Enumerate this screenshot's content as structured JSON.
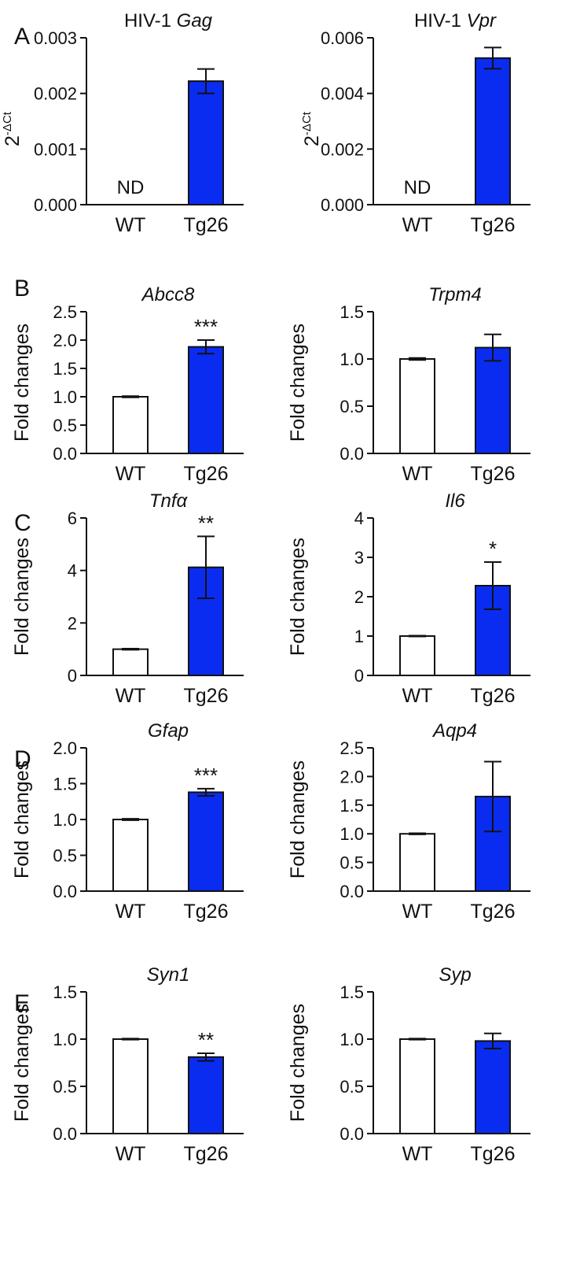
{
  "colors": {
    "wt_fill": "#ffffff",
    "tg_fill": "#0a2cf0",
    "stroke": "#111111"
  },
  "chart_data": [
    {
      "type": "bar",
      "panel": "A",
      "title_prefix": "HIV-1 ",
      "title": "Gag",
      "title_italic": true,
      "ylabel": "2-ΔCt",
      "ylabel_base": "2",
      "ylabel_sup": "-ΔCt",
      "ylim": [
        0,
        0.003
      ],
      "yticks": [
        "0.000",
        "0.001",
        "0.002",
        "0.003"
      ],
      "ytick_values": [
        0,
        0.001,
        0.002,
        0.003
      ],
      "categories": [
        "WT",
        "Tg26"
      ],
      "values": [
        0,
        0.00222
      ],
      "errors": [
        0,
        0.00022
      ],
      "annotations": [
        "ND",
        ""
      ]
    },
    {
      "type": "bar",
      "panel": "",
      "title_prefix": "HIV-1 ",
      "title": "Vpr",
      "title_italic": true,
      "ylabel": "2-ΔCt",
      "ylabel_base": "2",
      "ylabel_sup": "-ΔCt",
      "ylim": [
        0,
        0.006
      ],
      "yticks": [
        "0.000",
        "0.002",
        "0.004",
        "0.006"
      ],
      "ytick_values": [
        0,
        0.002,
        0.004,
        0.006
      ],
      "categories": [
        "WT",
        "Tg26"
      ],
      "values": [
        0,
        0.00527
      ],
      "errors": [
        0,
        0.00038
      ],
      "annotations": [
        "ND",
        ""
      ]
    },
    {
      "type": "bar",
      "panel": "B",
      "title_prefix": "",
      "title": "Abcc8",
      "title_italic": true,
      "ylabel": "Fold changes",
      "ylim": [
        0,
        2.5
      ],
      "yticks": [
        "0.0",
        "0.5",
        "1.0",
        "1.5",
        "2.0",
        "2.5"
      ],
      "ytick_values": [
        0,
        0.5,
        1.0,
        1.5,
        2.0,
        2.5
      ],
      "categories": [
        "WT",
        "Tg26"
      ],
      "values": [
        1.0,
        1.88
      ],
      "errors": [
        0.01,
        0.12
      ],
      "annotations": [
        "",
        "***"
      ]
    },
    {
      "type": "bar",
      "panel": "",
      "title_prefix": "",
      "title": "Trpm4",
      "title_italic": true,
      "ylabel": "Fold changes",
      "ylim": [
        0,
        1.5
      ],
      "yticks": [
        "0.0",
        "0.5",
        "1.0",
        "1.5"
      ],
      "ytick_values": [
        0,
        0.5,
        1.0,
        1.5
      ],
      "categories": [
        "WT",
        "Tg26"
      ],
      "values": [
        1.0,
        1.12
      ],
      "errors": [
        0.01,
        0.14
      ],
      "annotations": [
        "",
        ""
      ]
    },
    {
      "type": "bar",
      "panel": "C",
      "title_prefix": "",
      "title": "Tnfα",
      "title_italic": true,
      "ylabel": "Fold changes",
      "ylim": [
        0,
        6
      ],
      "yticks": [
        "0",
        "2",
        "4",
        "6"
      ],
      "ytick_values": [
        0,
        2,
        4,
        6
      ],
      "categories": [
        "WT",
        "Tg26"
      ],
      "values": [
        1.0,
        4.12
      ],
      "errors": [
        0.02,
        1.18
      ],
      "annotations": [
        "",
        "**"
      ]
    },
    {
      "type": "bar",
      "panel": "",
      "title_prefix": "",
      "title": "Il6",
      "title_italic": true,
      "ylabel": "Fold changes",
      "ylim": [
        0,
        4
      ],
      "yticks": [
        "0",
        "1",
        "2",
        "3",
        "4"
      ],
      "ytick_values": [
        0,
        1,
        2,
        3,
        4
      ],
      "categories": [
        "WT",
        "Tg26"
      ],
      "values": [
        1.0,
        2.28
      ],
      "errors": [
        0.01,
        0.6
      ],
      "annotations": [
        "",
        "*"
      ]
    },
    {
      "type": "bar",
      "panel": "D",
      "title_prefix": "",
      "title": "Gfap",
      "title_italic": true,
      "ylabel": "Fold changes",
      "ylim": [
        0,
        2.0
      ],
      "yticks": [
        "0.0",
        "0.5",
        "1.0",
        "1.5",
        "2.0"
      ],
      "ytick_values": [
        0,
        0.5,
        1.0,
        1.5,
        2.0
      ],
      "categories": [
        "WT",
        "Tg26"
      ],
      "values": [
        1.0,
        1.38
      ],
      "errors": [
        0.01,
        0.05
      ],
      "annotations": [
        "",
        "***"
      ]
    },
    {
      "type": "bar",
      "panel": "",
      "title_prefix": "",
      "title": "Aqp4",
      "title_italic": true,
      "ylabel": "Fold changes",
      "ylim": [
        0,
        2.5
      ],
      "yticks": [
        "0.0",
        "0.5",
        "1.0",
        "1.5",
        "2.0",
        "2.5"
      ],
      "ytick_values": [
        0,
        0.5,
        1.0,
        1.5,
        2.0,
        2.5
      ],
      "categories": [
        "WT",
        "Tg26"
      ],
      "values": [
        1.0,
        1.65
      ],
      "errors": [
        0.01,
        0.61
      ],
      "annotations": [
        "",
        ""
      ]
    },
    {
      "type": "bar",
      "panel": "E",
      "title_prefix": "",
      "title": "Syn1",
      "title_italic": true,
      "ylabel": "Fold changes",
      "ylim": [
        0,
        1.5
      ],
      "yticks": [
        "0.0",
        "0.5",
        "1.0",
        "1.5"
      ],
      "ytick_values": [
        0,
        0.5,
        1.0,
        1.5
      ],
      "categories": [
        "WT",
        "Tg26"
      ],
      "values": [
        1.0,
        0.81
      ],
      "errors": [
        0.005,
        0.04
      ],
      "annotations": [
        "",
        "**"
      ]
    },
    {
      "type": "bar",
      "panel": "",
      "title_prefix": "",
      "title": "Syp",
      "title_italic": true,
      "ylabel": "Fold changes",
      "ylim": [
        0,
        1.5
      ],
      "yticks": [
        "0.0",
        "0.5",
        "1.0",
        "1.5"
      ],
      "ytick_values": [
        0,
        0.5,
        1.0,
        1.5
      ],
      "categories": [
        "WT",
        "Tg26"
      ],
      "values": [
        1.0,
        0.98
      ],
      "errors": [
        0.005,
        0.08
      ],
      "annotations": [
        "",
        ""
      ]
    }
  ]
}
